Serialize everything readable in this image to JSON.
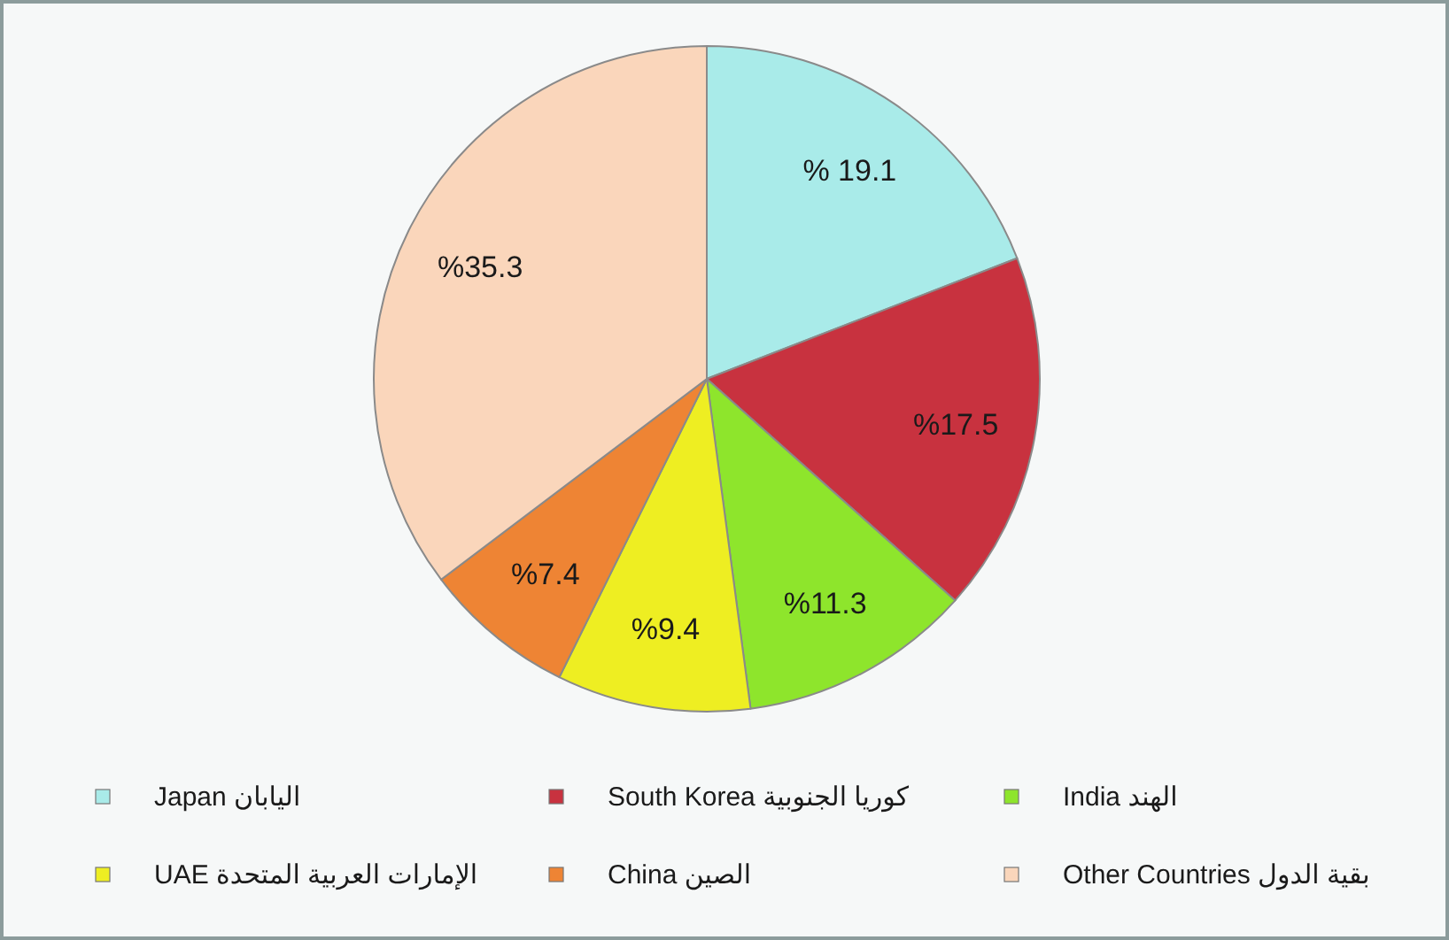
{
  "chart_data": {
    "type": "pie",
    "categories": [
      "Japan اليابان",
      "South Korea كوريا الجنوبية",
      "India الهند",
      "UAE الإمارات العربية المتحدة",
      "China الصين",
      "Other Countries بقية الدول"
    ],
    "values": [
      19.1,
      17.5,
      11.3,
      9.4,
      7.4,
      35.3
    ],
    "colors": [
      "#a9ebe9",
      "#c8323f",
      "#8ee52c",
      "#eeee22",
      "#ee8434",
      "#fad6bb"
    ],
    "value_labels": [
      "% 19.1",
      "%17.5",
      "%11.3",
      "%9.4",
      "%7.4",
      "%35.3"
    ],
    "legend": "bottom"
  }
}
